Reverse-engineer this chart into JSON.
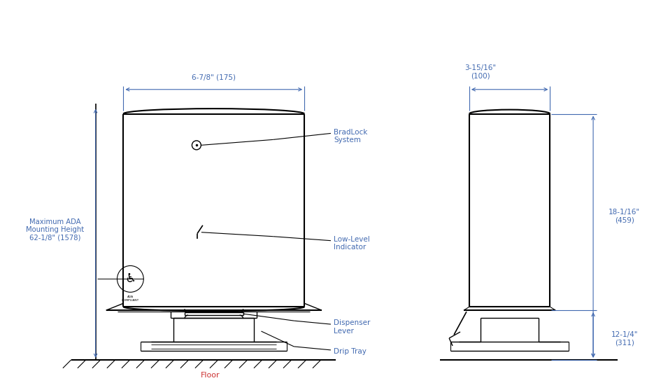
{
  "bg_color": "#ffffff",
  "line_color": "#000000",
  "text_color": "#000000",
  "dim_color": "#4169b0",
  "annot_color": "#4169b0",
  "floor_label_color": "#cc3333",
  "fig_width": 9.25,
  "fig_height": 5.57,
  "labels": {
    "width_front": "6-7/8\" (175)",
    "width_side": "3-15/16\"\n(100)",
    "height_total": "18-1/16\"\n(459)",
    "height_partial": "12-1/4\"\n(311)",
    "ada_height": "Maximum ADA\nMounting Height\n62-1/8\" (1578)",
    "floor": "Floor",
    "bradlock": "BradLock\nSystem",
    "lowlevel": "Low-Level\nIndicator",
    "dispenser": "Dispenser\nLever",
    "drip": "Drip Tray"
  }
}
